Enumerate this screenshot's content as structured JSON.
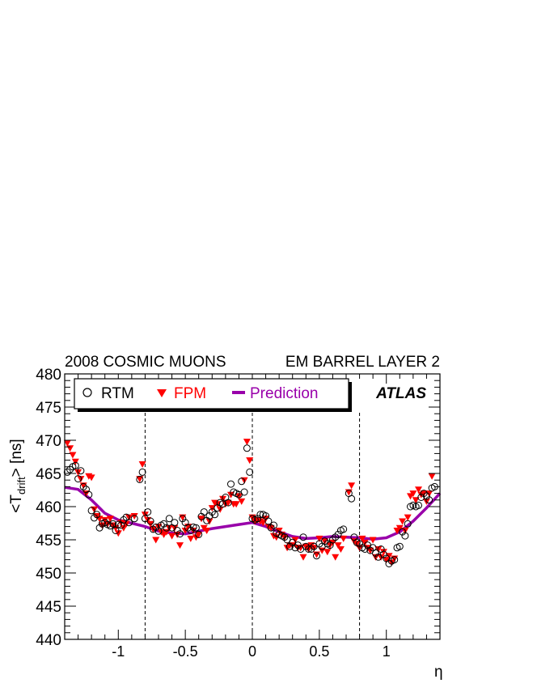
{
  "chart_data": {
    "type": "scatter",
    "title_left": "2008 COSMIC MUONS",
    "title_right": "EM BARREL LAYER 2",
    "experiment_label": "ATLAS",
    "xlabel": "η",
    "ylabel": "<T",
    "ylabel_sub": "drift",
    "ylabel_end": "> [ns]",
    "xlim": [
      -1.4,
      1.4
    ],
    "ylim": [
      440,
      480
    ],
    "x_ticks": [
      -1,
      -0.5,
      0,
      0.5,
      1
    ],
    "x_tick_labels": [
      "-1",
      "-0.5",
      "0",
      "0.5",
      "1"
    ],
    "y_ticks": [
      440,
      445,
      450,
      455,
      460,
      465,
      470,
      475,
      480
    ],
    "y_tick_labels": [
      "440",
      "445",
      "450",
      "455",
      "460",
      "465",
      "470",
      "475",
      "480"
    ],
    "vertical_dashed_lines": [
      -0.8,
      0,
      0.8
    ],
    "legend_placement": "top-left",
    "colors": {
      "rtm": "#000000",
      "fpm": "#ff0000",
      "prediction": "#9900aa",
      "frame": "#000000"
    },
    "series": [
      {
        "name": "RTM",
        "marker": "open-circle",
        "points": [
          [
            -1.38,
            465.2
          ],
          [
            -1.36,
            465.6
          ],
          [
            -1.34,
            466.0
          ],
          [
            -1.32,
            466.2
          ],
          [
            -1.3,
            464.2
          ],
          [
            -1.28,
            465.4
          ],
          [
            -1.26,
            463.0
          ],
          [
            -1.24,
            462.6
          ],
          [
            -1.22,
            461.8
          ],
          [
            -1.2,
            459.4
          ],
          [
            -1.18,
            458.3
          ],
          [
            -1.16,
            458.8
          ],
          [
            -1.14,
            456.8
          ],
          [
            -1.12,
            457.4
          ],
          [
            -1.1,
            457.6
          ],
          [
            -1.08,
            457.3
          ],
          [
            -1.06,
            457.1
          ],
          [
            -1.04,
            457.4
          ],
          [
            -1.02,
            456.4
          ],
          [
            -1.0,
            457.3
          ],
          [
            -0.98,
            457.2
          ],
          [
            -0.96,
            458.0
          ],
          [
            -0.94,
            458.4
          ],
          [
            -0.92,
            457.6
          ],
          [
            -0.88,
            458.2
          ],
          [
            -0.84,
            464.1
          ],
          [
            -0.82,
            465.2
          ],
          [
            -0.8,
            458.2
          ],
          [
            -0.78,
            459.2
          ],
          [
            -0.76,
            457.8
          ],
          [
            -0.74,
            456.6
          ],
          [
            -0.72,
            456.9
          ],
          [
            -0.7,
            456.3
          ],
          [
            -0.68,
            457.2
          ],
          [
            -0.66,
            457.4
          ],
          [
            -0.64,
            456.8
          ],
          [
            -0.62,
            458.2
          ],
          [
            -0.6,
            456.8
          ],
          [
            -0.58,
            457.6
          ],
          [
            -0.56,
            456.4
          ],
          [
            -0.54,
            455.9
          ],
          [
            -0.52,
            458.2
          ],
          [
            -0.5,
            457.6
          ],
          [
            -0.48,
            456.8
          ],
          [
            -0.46,
            456.4
          ],
          [
            -0.44,
            456.9
          ],
          [
            -0.42,
            456.8
          ],
          [
            -0.4,
            455.8
          ],
          [
            -0.38,
            458.5
          ],
          [
            -0.36,
            459.2
          ],
          [
            -0.34,
            457.9
          ],
          [
            -0.32,
            458.6
          ],
          [
            -0.3,
            459.2
          ],
          [
            -0.28,
            458.8
          ],
          [
            -0.26,
            459.8
          ],
          [
            -0.24,
            460.6
          ],
          [
            -0.22,
            460.4
          ],
          [
            -0.2,
            461.4
          ],
          [
            -0.18,
            460.6
          ],
          [
            -0.16,
            463.4
          ],
          [
            -0.14,
            462.2
          ],
          [
            -0.12,
            462.0
          ],
          [
            -0.1,
            461.8
          ],
          [
            -0.08,
            463.8
          ],
          [
            -0.06,
            462.2
          ],
          [
            -0.04,
            468.8
          ],
          [
            -0.02,
            465.2
          ],
          [
            0.0,
            458.2
          ],
          [
            0.02,
            458.0
          ],
          [
            0.04,
            458.2
          ],
          [
            0.06,
            458.8
          ],
          [
            0.08,
            458.8
          ],
          [
            0.1,
            458.6
          ],
          [
            0.12,
            457.8
          ],
          [
            0.14,
            456.8
          ],
          [
            0.16,
            457.2
          ],
          [
            0.18,
            456.0
          ],
          [
            0.2,
            455.8
          ],
          [
            0.22,
            455.6
          ],
          [
            0.24,
            455.4
          ],
          [
            0.26,
            455.0
          ],
          [
            0.28,
            454.0
          ],
          [
            0.3,
            454.6
          ],
          [
            0.32,
            453.8
          ],
          [
            0.34,
            454.2
          ],
          [
            0.36,
            453.6
          ],
          [
            0.38,
            455.4
          ],
          [
            0.4,
            454.0
          ],
          [
            0.42,
            453.6
          ],
          [
            0.44,
            453.6
          ],
          [
            0.46,
            454.0
          ],
          [
            0.48,
            452.6
          ],
          [
            0.5,
            454.4
          ],
          [
            0.52,
            454.0
          ],
          [
            0.54,
            454.8
          ],
          [
            0.56,
            454.4
          ],
          [
            0.58,
            454.2
          ],
          [
            0.6,
            455.0
          ],
          [
            0.62,
            455.4
          ],
          [
            0.64,
            455.8
          ],
          [
            0.66,
            456.4
          ],
          [
            0.68,
            456.6
          ],
          [
            0.72,
            462.0
          ],
          [
            0.74,
            461.2
          ],
          [
            0.76,
            455.4
          ],
          [
            0.78,
            454.6
          ],
          [
            0.8,
            454.4
          ],
          [
            0.82,
            453.8
          ],
          [
            0.84,
            453.6
          ],
          [
            0.86,
            454.2
          ],
          [
            0.88,
            453.4
          ],
          [
            0.9,
            453.8
          ],
          [
            0.92,
            453.0
          ],
          [
            0.94,
            452.4
          ],
          [
            0.96,
            453.6
          ],
          [
            0.98,
            452.8
          ],
          [
            1.0,
            452.2
          ],
          [
            1.02,
            451.4
          ],
          [
            1.04,
            451.8
          ],
          [
            1.06,
            452.0
          ],
          [
            1.08,
            453.8
          ],
          [
            1.1,
            454.0
          ],
          [
            1.12,
            456.2
          ],
          [
            1.14,
            455.6
          ],
          [
            1.16,
            457.4
          ],
          [
            1.18,
            460.0
          ],
          [
            1.2,
            460.2
          ],
          [
            1.22,
            460.0
          ],
          [
            1.24,
            460.2
          ],
          [
            1.26,
            461.4
          ],
          [
            1.28,
            462.0
          ],
          [
            1.3,
            461.6
          ],
          [
            1.32,
            461.0
          ],
          [
            1.34,
            462.8
          ],
          [
            1.36,
            463.0
          ]
        ]
      },
      {
        "name": "FPM",
        "marker": "filled-triangle-down",
        "points": [
          [
            -1.38,
            469.6
          ],
          [
            -1.36,
            468.8
          ],
          [
            -1.34,
            467.8
          ],
          [
            -1.32,
            466.8
          ],
          [
            -1.3,
            465.2
          ],
          [
            -1.28,
            464.2
          ],
          [
            -1.26,
            463.2
          ],
          [
            -1.24,
            462.0
          ],
          [
            -1.22,
            464.6
          ],
          [
            -1.2,
            464.4
          ],
          [
            -1.18,
            459.6
          ],
          [
            -1.16,
            458.6
          ],
          [
            -1.14,
            458.2
          ],
          [
            -1.12,
            457.2
          ],
          [
            -1.1,
            458.0
          ],
          [
            -1.08,
            457.4
          ],
          [
            -1.06,
            458.2
          ],
          [
            -1.04,
            457.2
          ],
          [
            -1.02,
            456.8
          ],
          [
            -1.0,
            456.0
          ],
          [
            -0.98,
            457.6
          ],
          [
            -0.96,
            456.8
          ],
          [
            -0.94,
            457.4
          ],
          [
            -0.92,
            458.4
          ],
          [
            -0.88,
            458.6
          ],
          [
            -0.84,
            464.2
          ],
          [
            -0.82,
            466.4
          ],
          [
            -0.8,
            458.8
          ],
          [
            -0.78,
            458.0
          ],
          [
            -0.76,
            457.4
          ],
          [
            -0.74,
            456.6
          ],
          [
            -0.72,
            455.0
          ],
          [
            -0.7,
            457.0
          ],
          [
            -0.68,
            456.2
          ],
          [
            -0.66,
            455.8
          ],
          [
            -0.64,
            456.2
          ],
          [
            -0.62,
            456.8
          ],
          [
            -0.6,
            455.6
          ],
          [
            -0.58,
            456.8
          ],
          [
            -0.56,
            455.8
          ],
          [
            -0.54,
            454.2
          ],
          [
            -0.52,
            458.4
          ],
          [
            -0.5,
            456.4
          ],
          [
            -0.48,
            457.0
          ],
          [
            -0.46,
            455.2
          ],
          [
            -0.44,
            456.4
          ],
          [
            -0.42,
            455.4
          ],
          [
            -0.4,
            455.8
          ],
          [
            -0.38,
            458.2
          ],
          [
            -0.36,
            456.8
          ],
          [
            -0.34,
            456.4
          ],
          [
            -0.32,
            457.8
          ],
          [
            -0.3,
            459.8
          ],
          [
            -0.28,
            460.6
          ],
          [
            -0.26,
            460.4
          ],
          [
            -0.24,
            459.6
          ],
          [
            -0.22,
            461.2
          ],
          [
            -0.2,
            460.4
          ],
          [
            -0.18,
            460.6
          ],
          [
            -0.16,
            461.8
          ],
          [
            -0.14,
            460.4
          ],
          [
            -0.12,
            460.4
          ],
          [
            -0.1,
            461.6
          ],
          [
            -0.08,
            460.8
          ],
          [
            -0.06,
            464.0
          ],
          [
            -0.04,
            469.8
          ],
          [
            -0.02,
            467.0
          ],
          [
            0.0,
            458.4
          ],
          [
            0.02,
            457.8
          ],
          [
            0.04,
            458.0
          ],
          [
            0.06,
            457.8
          ],
          [
            0.08,
            457.6
          ],
          [
            0.1,
            458.2
          ],
          [
            0.12,
            457.0
          ],
          [
            0.14,
            456.8
          ],
          [
            0.16,
            455.6
          ],
          [
            0.18,
            455.4
          ],
          [
            0.2,
            456.4
          ],
          [
            0.22,
            455.8
          ],
          [
            0.24,
            455.4
          ],
          [
            0.26,
            453.8
          ],
          [
            0.28,
            454.2
          ],
          [
            0.3,
            454.2
          ],
          [
            0.32,
            455.0
          ],
          [
            0.34,
            453.8
          ],
          [
            0.36,
            453.8
          ],
          [
            0.38,
            452.4
          ],
          [
            0.4,
            454.0
          ],
          [
            0.42,
            453.6
          ],
          [
            0.44,
            454.2
          ],
          [
            0.46,
            453.8
          ],
          [
            0.48,
            452.8
          ],
          [
            0.5,
            455.2
          ],
          [
            0.52,
            453.4
          ],
          [
            0.54,
            454.8
          ],
          [
            0.56,
            453.2
          ],
          [
            0.58,
            454.2
          ],
          [
            0.6,
            454.6
          ],
          [
            0.62,
            452.4
          ],
          [
            0.64,
            454.2
          ],
          [
            0.66,
            453.6
          ],
          [
            0.68,
            455.2
          ],
          [
            0.72,
            462.2
          ],
          [
            0.74,
            463.2
          ],
          [
            0.76,
            454.8
          ],
          [
            0.78,
            454.4
          ],
          [
            0.8,
            453.8
          ],
          [
            0.82,
            455.2
          ],
          [
            0.84,
            454.6
          ],
          [
            0.86,
            453.8
          ],
          [
            0.88,
            453.4
          ],
          [
            0.9,
            455.0
          ],
          [
            0.92,
            452.4
          ],
          [
            0.94,
            453.6
          ],
          [
            0.96,
            452.4
          ],
          [
            0.98,
            453.2
          ],
          [
            1.0,
            452.0
          ],
          [
            1.02,
            452.6
          ],
          [
            1.04,
            451.6
          ],
          [
            1.06,
            452.2
          ],
          [
            1.08,
            456.4
          ],
          [
            1.1,
            456.8
          ],
          [
            1.12,
            457.8
          ],
          [
            1.14,
            456.4
          ],
          [
            1.16,
            458.4
          ],
          [
            1.18,
            461.6
          ],
          [
            1.2,
            462.0
          ],
          [
            1.22,
            461.0
          ],
          [
            1.24,
            462.6
          ],
          [
            1.26,
            461.8
          ],
          [
            1.28,
            462.0
          ],
          [
            1.3,
            460.8
          ],
          [
            1.32,
            462.0
          ],
          [
            1.34,
            464.6
          ]
        ]
      },
      {
        "name": "Prediction",
        "marker": "line",
        "points": [
          [
            -1.4,
            462.9
          ],
          [
            -1.3,
            462.6
          ],
          [
            -1.2,
            461.0
          ],
          [
            -1.1,
            459.0
          ],
          [
            -1.0,
            458.0
          ],
          [
            -0.9,
            457.5
          ],
          [
            -0.8,
            457.0
          ],
          [
            -0.7,
            456.3
          ],
          [
            -0.6,
            456.0
          ],
          [
            -0.5,
            455.9
          ],
          [
            -0.4,
            456.3
          ],
          [
            -0.3,
            456.7
          ],
          [
            -0.2,
            457.0
          ],
          [
            -0.1,
            457.3
          ],
          [
            0.0,
            457.6
          ],
          [
            0.1,
            457.0
          ],
          [
            0.2,
            456.2
          ],
          [
            0.3,
            455.5
          ],
          [
            0.4,
            455.2
          ],
          [
            0.5,
            455.3
          ],
          [
            0.6,
            455.5
          ],
          [
            0.7,
            455.4
          ],
          [
            0.8,
            455.3
          ],
          [
            0.9,
            455.1
          ],
          [
            1.0,
            455.3
          ],
          [
            1.1,
            456.2
          ],
          [
            1.2,
            457.8
          ],
          [
            1.3,
            459.8
          ],
          [
            1.4,
            462.0
          ]
        ]
      }
    ]
  }
}
